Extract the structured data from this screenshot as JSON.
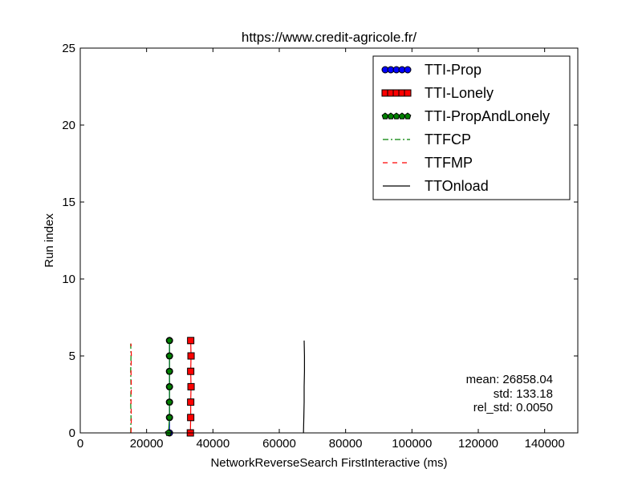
{
  "chart_data": {
    "type": "line",
    "title": "https://www.credit-agricole.fr/",
    "xlabel": "NetworkReverseSearch FirstInteractive (ms)",
    "ylabel": "Run index",
    "xlim": [
      0,
      150000
    ],
    "ylim": [
      0,
      25
    ],
    "x_ticks": [
      0,
      20000,
      40000,
      60000,
      80000,
      100000,
      120000,
      140000
    ],
    "y_ticks": [
      0,
      5,
      10,
      15,
      20,
      25
    ],
    "grid": false,
    "legend_position": "top-right",
    "series": [
      {
        "name": "TTI-Prop",
        "color": "#0000ff",
        "marker": "circle",
        "line_style": "solid",
        "x": [
          26900,
          26900,
          26900,
          26900,
          26900,
          26900,
          26900
        ],
        "y": [
          0,
          1,
          2,
          3,
          4,
          5,
          6
        ]
      },
      {
        "name": "TTI-Lonely",
        "color": "#ff0000",
        "marker": "square",
        "line_style": "solid",
        "x": [
          33200,
          33300,
          33300,
          33400,
          33300,
          33400,
          33300
        ],
        "y": [
          0,
          1,
          2,
          3,
          4,
          5,
          6
        ]
      },
      {
        "name": "TTI-PropAndLonely",
        "color": "#008000",
        "marker": "pentagon",
        "line_style": "solid",
        "x": [
          26600,
          26900,
          26900,
          26900,
          26900,
          26900,
          26900
        ],
        "y": [
          0,
          1,
          2,
          3,
          4,
          5,
          6
        ]
      },
      {
        "name": "TTFCP",
        "color": "#008000",
        "marker": "none",
        "line_style": "dashdot",
        "x": [
          15200,
          15300,
          15200,
          15300,
          15200,
          15300,
          15200
        ],
        "y": [
          0,
          1,
          2,
          3,
          4,
          5,
          5.8
        ]
      },
      {
        "name": "TTFMP",
        "color": "#ff0000",
        "marker": "none",
        "line_style": "dashed",
        "x": [
          15300,
          15400,
          15300,
          15400,
          15300,
          15400,
          15300
        ],
        "y": [
          0,
          1,
          2,
          3,
          4,
          5,
          5.8
        ]
      },
      {
        "name": "TTOnload",
        "color": "#000000",
        "marker": "none",
        "line_style": "solid",
        "x": [
          67300,
          67400,
          67500,
          67500,
          67600,
          67600,
          67500
        ],
        "y": [
          0,
          1,
          2,
          3,
          4,
          5,
          6
        ]
      }
    ],
    "annotations": [
      "mean: 26858.04",
      "std: 133.18",
      "rel_std: 0.0050"
    ]
  }
}
